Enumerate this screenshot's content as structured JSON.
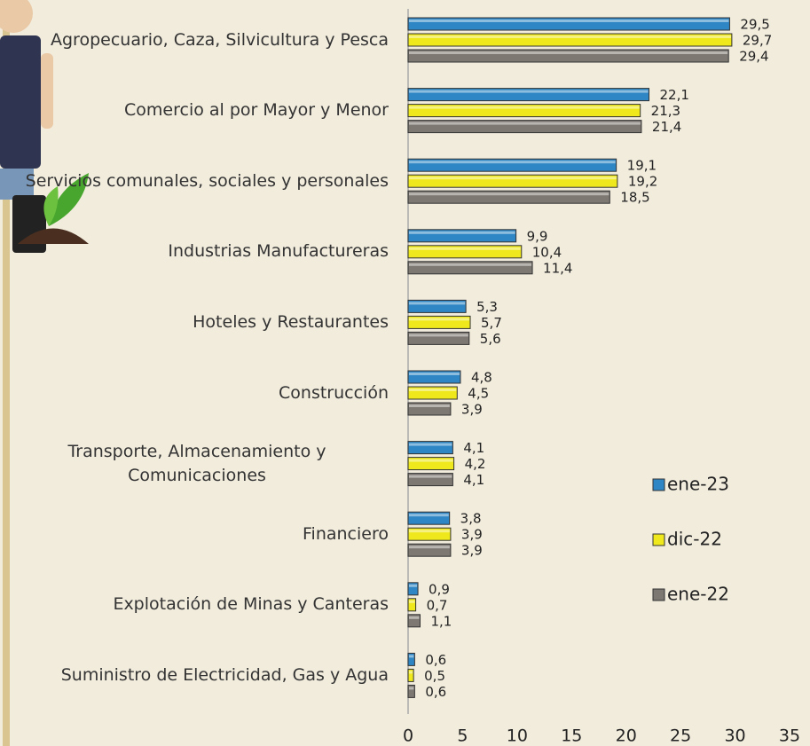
{
  "chart_data": {
    "type": "hbar",
    "categories": [
      "Agropecuario, Caza, Silvicultura y Pesca",
      "Comercio al por Mayor y Menor",
      "Servicios comunales, sociales y personales",
      "Industrias Manufactureras",
      "Hoteles y Restaurantes",
      "Construcción",
      "Transporte, Almacenamiento y Comunicaciones",
      "Financiero",
      "Explotación de Minas y Canteras",
      "Suministro de Electricidad, Gas y Agua"
    ],
    "series": [
      {
        "name": "ene-23",
        "color": "#2f86c4",
        "values": [
          29.5,
          22.1,
          19.1,
          9.9,
          5.3,
          4.8,
          4.1,
          3.8,
          0.9,
          0.6
        ],
        "value_labels": [
          "29,5",
          "22,1",
          "19,1",
          "9,9",
          "5,3",
          "4,8",
          "4,1",
          "3,8",
          "0,9",
          "0,6"
        ]
      },
      {
        "name": "dic-22",
        "color": "#eee81c",
        "values": [
          29.7,
          21.3,
          19.2,
          10.4,
          5.7,
          4.5,
          4.2,
          3.9,
          0.7,
          0.5
        ],
        "value_labels": [
          "29,7",
          "21,3",
          "19,2",
          "10,4",
          "5,7",
          "4,5",
          "4,2",
          "3,9",
          "0,7",
          "0,5"
        ]
      },
      {
        "name": "ene-22",
        "color": "#7e7872",
        "values": [
          29.4,
          21.4,
          18.5,
          11.4,
          5.6,
          3.9,
          4.1,
          3.9,
          1.1,
          0.6
        ],
        "value_labels": [
          "29,4",
          "21,4",
          "18,5",
          "11,4",
          "5,6",
          "3,9",
          "4,1",
          "3,9",
          "1,1",
          "0,6"
        ]
      }
    ],
    "xlim": [
      0,
      35
    ],
    "xticks": [
      0,
      5,
      10,
      15,
      20,
      25,
      30,
      35
    ],
    "legend": "right"
  }
}
